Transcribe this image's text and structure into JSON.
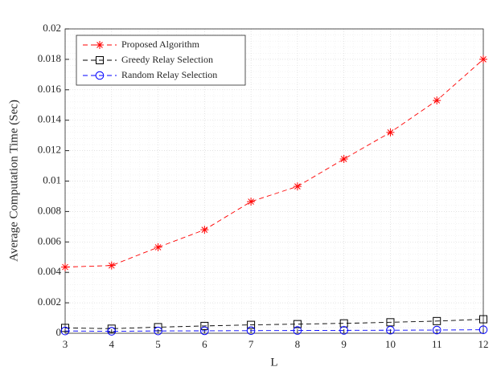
{
  "chart_data": {
    "type": "line",
    "x_label": "L",
    "y_label": "Average Computation Time (Sec)",
    "x": [
      3,
      4,
      5,
      6,
      7,
      8,
      9,
      10,
      11,
      12
    ],
    "series": [
      {
        "name": "Proposed Algorithm",
        "color": "#ff0000",
        "marker": "star",
        "linestyle": "dashed",
        "values": [
          0.00435,
          0.00445,
          0.00565,
          0.0068,
          0.00865,
          0.00965,
          0.01145,
          0.0132,
          0.0153,
          0.018
        ]
      },
      {
        "name": "Greedy Relay Selection",
        "color": "#000000",
        "marker": "square",
        "linestyle": "dashed",
        "values": [
          0.00035,
          0.0003,
          0.0004,
          0.00048,
          0.00055,
          0.0006,
          0.00065,
          0.00072,
          0.0008,
          0.00092
        ]
      },
      {
        "name": "Random Relay Selection",
        "color": "#0000ff",
        "marker": "circle",
        "linestyle": "dashed",
        "values": [
          0.00015,
          0.00013,
          0.00015,
          0.00016,
          0.00017,
          0.00018,
          0.00019,
          0.0002,
          0.00021,
          0.00023
        ]
      }
    ],
    "xlim": [
      3,
      12
    ],
    "xticks": [
      3,
      4,
      5,
      6,
      7,
      8,
      9,
      10,
      11,
      12
    ],
    "ylim": [
      0,
      0.02
    ],
    "yticks": [
      0,
      0.002,
      0.004,
      0.006,
      0.008,
      0.01,
      0.012,
      0.014,
      0.016,
      0.018,
      0.02
    ],
    "grid": true,
    "minor_grid": true,
    "legend": "upper left"
  }
}
